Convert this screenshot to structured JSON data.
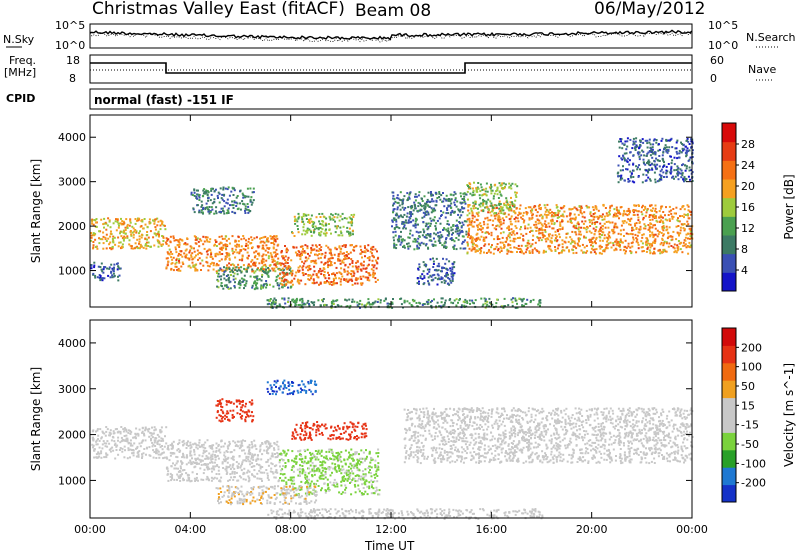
{
  "header": {
    "title": "Christmas Valley East (fitACF)",
    "beam": "Beam 08",
    "date": "06/May/2012"
  },
  "top_panels": {
    "nsky_label": "N.Sky",
    "nsearch_label": "N.Search",
    "nsky_ticks": [
      "10^5",
      "10^0"
    ],
    "nsearch_ticks": [
      "10^5",
      "10^0"
    ],
    "freq_label": "Freq.",
    "freq_unit": "[MHz]",
    "freq_ticks": [
      "18",
      "8"
    ],
    "nave_label": "Nave",
    "nave_ticks": [
      "60",
      "0"
    ],
    "cpid_label": "CPID",
    "cpid_text": "normal (fast) -151 IF"
  },
  "colors": {
    "power_scale": [
      "#1414c8",
      "#3a50b4",
      "#3c7a64",
      "#4aa050",
      "#9ecb3c",
      "#f5a020",
      "#f57014",
      "#e63c14",
      "#d80a0a"
    ],
    "velocity_scale": [
      "#1432c8",
      "#1e78d2",
      "#28a028",
      "#7ad23c",
      "#c8c8c8",
      "#c8c8c8",
      "#f0a020",
      "#f06a10",
      "#e63214",
      "#d20a0a"
    ]
  },
  "chart_data": [
    {
      "type": "heatmap",
      "name": "power",
      "ylabel": "Slant Range [km]",
      "xlabel": "Time UT",
      "x_ticks": [
        "00:00",
        "04:00",
        "08:00",
        "12:00",
        "16:00",
        "20:00",
        "00:00"
      ],
      "y_ticks": [
        "4000",
        "3000",
        "2000",
        "1000"
      ],
      "xlim_hours": [
        0,
        24
      ],
      "ylim_km": [
        180,
        4500
      ],
      "colorbar": {
        "label": "Power [dB]",
        "ticks": [
          "28",
          "24",
          "20",
          "16",
          "12",
          "8",
          "4"
        ],
        "range": [
          0,
          30
        ]
      },
      "echo_regions": [
        {
          "t0": 0.0,
          "t1": 3.0,
          "r0": 1500,
          "r1": 2200,
          "value": 18
        },
        {
          "t0": 0.0,
          "t1": 1.2,
          "r0": 800,
          "r1": 1200,
          "value": 6
        },
        {
          "t0": 3.0,
          "t1": 7.5,
          "r0": 1000,
          "r1": 1800,
          "value": 20
        },
        {
          "t0": 4.0,
          "t1": 6.5,
          "r0": 2300,
          "r1": 2900,
          "value": 8
        },
        {
          "t0": 5.0,
          "t1": 8.0,
          "r0": 600,
          "r1": 1100,
          "value": 10
        },
        {
          "t0": 7.5,
          "t1": 11.5,
          "r0": 700,
          "r1": 1600,
          "value": 22
        },
        {
          "t0": 8.0,
          "t1": 10.5,
          "r0": 1800,
          "r1": 2300,
          "value": 14
        },
        {
          "t0": 12.0,
          "t1": 15.0,
          "r0": 1500,
          "r1": 2800,
          "value": 8
        },
        {
          "t0": 13.0,
          "t1": 14.5,
          "r0": 700,
          "r1": 1300,
          "value": 6
        },
        {
          "t0": 15.0,
          "t1": 24.0,
          "r0": 1400,
          "r1": 2500,
          "value": 20
        },
        {
          "t0": 15.0,
          "t1": 17.0,
          "r0": 2300,
          "r1": 3000,
          "value": 14
        },
        {
          "t0": 21.0,
          "t1": 24.0,
          "r0": 3000,
          "r1": 4000,
          "value": 6
        },
        {
          "t0": 7.0,
          "t1": 18.0,
          "r0": 180,
          "r1": 400,
          "value": 10
        }
      ]
    },
    {
      "type": "heatmap",
      "name": "velocity",
      "ylabel": "Slant Range [km]",
      "xlabel": "Time UT",
      "x_ticks": [
        "00:00",
        "04:00",
        "08:00",
        "12:00",
        "16:00",
        "20:00",
        "00:00"
      ],
      "y_ticks": [
        "4000",
        "3000",
        "2000",
        "1000"
      ],
      "xlim_hours": [
        0,
        24
      ],
      "ylim_km": [
        180,
        4500
      ],
      "colorbar": {
        "label": "Velocity [m s^-1]",
        "ticks": [
          "200",
          "100",
          "50",
          "15",
          "-15",
          "-50",
          "-100",
          "-200"
        ],
        "range": [
          -250,
          250
        ]
      },
      "echo_regions": [
        {
          "t0": 0.0,
          "t1": 3.0,
          "r0": 1500,
          "r1": 2200,
          "value": 0
        },
        {
          "t0": 3.0,
          "t1": 7.5,
          "r0": 1000,
          "r1": 1900,
          "value": 0
        },
        {
          "t0": 5.0,
          "t1": 6.5,
          "r0": 2300,
          "r1": 2800,
          "value": 180
        },
        {
          "t0": 8.0,
          "t1": 11.0,
          "r0": 1900,
          "r1": 2300,
          "value": 180
        },
        {
          "t0": 7.5,
          "t1": 11.5,
          "r0": 700,
          "r1": 1700,
          "value": -60
        },
        {
          "t0": 5.0,
          "t1": 9.0,
          "r0": 500,
          "r1": 900,
          "value": 40
        },
        {
          "t0": 12.5,
          "t1": 15.0,
          "r0": 1400,
          "r1": 2600,
          "value": 30
        },
        {
          "t0": 15.0,
          "t1": 24.0,
          "r0": 1400,
          "r1": 2600,
          "value": 0
        },
        {
          "t0": 7.0,
          "t1": 9.0,
          "r0": 2900,
          "r1": 3200,
          "value": -200
        },
        {
          "t0": 7.0,
          "t1": 18.0,
          "r0": 180,
          "r1": 400,
          "value": -30
        }
      ]
    }
  ]
}
